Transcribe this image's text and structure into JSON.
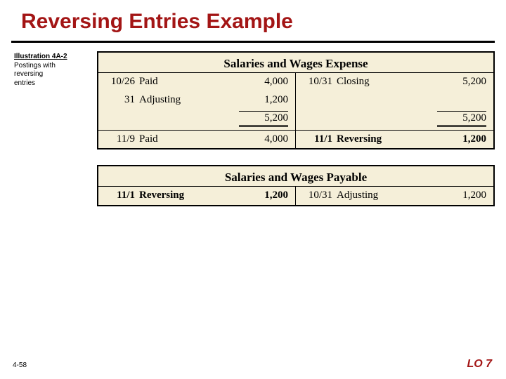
{
  "title": "Reversing Entries Example",
  "caption": {
    "heading": "Illustration 4A-2",
    "line1": "Postings with",
    "line2": "reversing",
    "line3": "entries"
  },
  "account1": {
    "title": "Salaries and Wages Expense",
    "left_top": [
      {
        "date": "10/26",
        "desc": "Paid",
        "amt": "4,000"
      },
      {
        "date": "31",
        "desc": "Adjusting",
        "amt": "1,200"
      }
    ],
    "left_total": "5,200",
    "right_top": [
      {
        "date": "10/31",
        "desc": "Closing",
        "amt": "5,200"
      }
    ],
    "right_total": "5,200",
    "left_bottom": [
      {
        "date": "11/9",
        "desc": "Paid",
        "amt": "4,000"
      }
    ],
    "right_bottom": [
      {
        "date": "11/1",
        "desc": "Reversing",
        "amt": "1,200",
        "bold": true
      }
    ]
  },
  "account2": {
    "title": "Salaries and Wages Payable",
    "left": [
      {
        "date": "11/1",
        "desc": "Reversing",
        "amt": "1,200",
        "bold": true
      }
    ],
    "right": [
      {
        "date": "10/31",
        "desc": "Adjusting",
        "amt": "1,200"
      }
    ]
  },
  "footer": {
    "page": "4-58",
    "lo": "LO 7"
  },
  "colors": {
    "title_color": "#a31515",
    "table_bg": "#f5efd9",
    "rule": "#000000"
  }
}
